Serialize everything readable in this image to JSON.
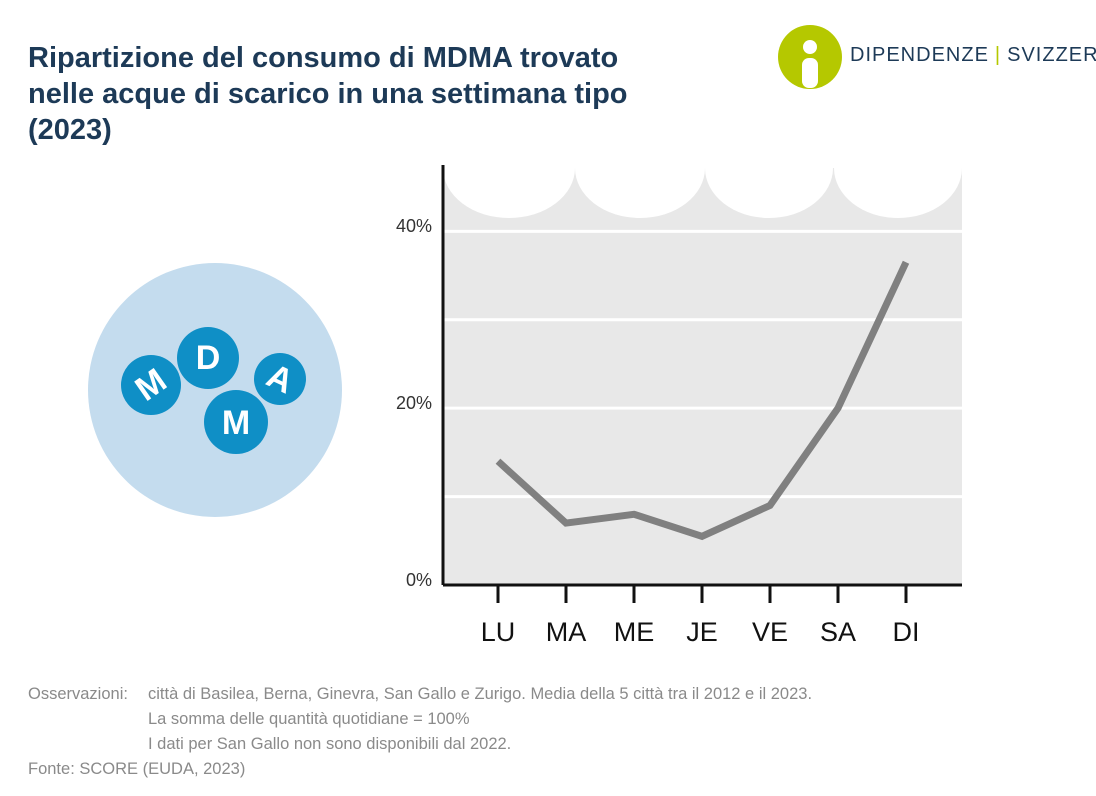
{
  "chart_data": {
    "type": "line",
    "title": "Ripartizione del consumo di MDMA trovato nelle acque di scarico in una settimana tipo (2023)",
    "categories": [
      "LU",
      "MA",
      "ME",
      "JE",
      "VE",
      "SA",
      "DI"
    ],
    "values": [
      14,
      7,
      8,
      5.5,
      9,
      20,
      36.5
    ],
    "color": "#808080",
    "ylim": [
      0,
      47.5
    ],
    "yticks": [
      {
        "value": 0,
        "label": "0%"
      },
      {
        "value": 20,
        "label": "20%"
      },
      {
        "value": 40,
        "label": "40%"
      }
    ],
    "minor_yticks": [
      10,
      30
    ],
    "grid": true
  },
  "logo": {
    "name": "DIPENDENZE",
    "country": "SVIZZERA"
  },
  "illustration": {
    "letters": [
      "M",
      "D",
      "A",
      "M"
    ]
  },
  "notes": {
    "label": "Osservazioni:",
    "lines": [
      "città di Basilea, Berna, Ginevra, San Gallo e Zurigo. Media della 5 città tra il 2012 e il 2023.",
      "La somma delle quantità quotidiane = 100%",
      "I dati per San Gallo non sono disponibili dal 2022."
    ],
    "source": "Fonte: SCORE (EUDA, 2023)"
  }
}
